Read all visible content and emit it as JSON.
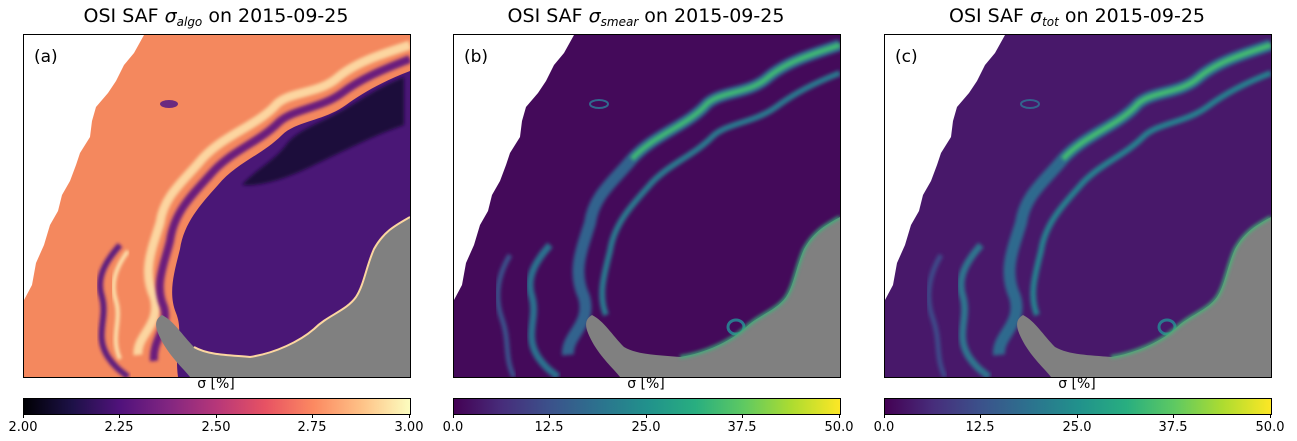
{
  "panels": [
    {
      "label": "(a)",
      "title_prefix": "OSI SAF ",
      "sigma": "σ",
      "sub": "algo",
      "title_suffix": " on 2015-09-25",
      "cbar_label": "σ [%]",
      "ticks": [
        "2.00",
        "2.25",
        "2.50",
        "2.75",
        "3.00"
      ],
      "range": [
        2.0,
        3.0
      ],
      "colormap": "magma"
    },
    {
      "label": "(b)",
      "title_prefix": "OSI SAF ",
      "sigma": "σ",
      "sub": "smear",
      "title_suffix": " on 2015-09-25",
      "cbar_label": "σ [%]",
      "ticks": [
        "0.0",
        "12.5",
        "25.0",
        "37.5",
        "50.0"
      ],
      "range": [
        0.0,
        50.0
      ],
      "colormap": "viridis"
    },
    {
      "label": "(c)",
      "title_prefix": "OSI SAF ",
      "sigma": "σ",
      "sub": "tot",
      "title_suffix": " on 2015-09-25",
      "cbar_label": "σ [%]",
      "ticks": [
        "0.0",
        "12.5",
        "25.0",
        "37.5",
        "50.0"
      ],
      "range": [
        0.0,
        50.0
      ],
      "colormap": "viridis"
    }
  ],
  "colors": {
    "land": "#808080",
    "open_water": "#ffffff",
    "magma": [
      "#000004",
      "#1d1147",
      "#51127c",
      "#822681",
      "#b73779",
      "#e75263",
      "#fc8961",
      "#fec287",
      "#fcfdbf"
    ],
    "viridis": [
      "#440154",
      "#472d7b",
      "#3b528b",
      "#2c728e",
      "#21918c",
      "#28ae80",
      "#5ec962",
      "#addc30",
      "#fde725"
    ]
  }
}
